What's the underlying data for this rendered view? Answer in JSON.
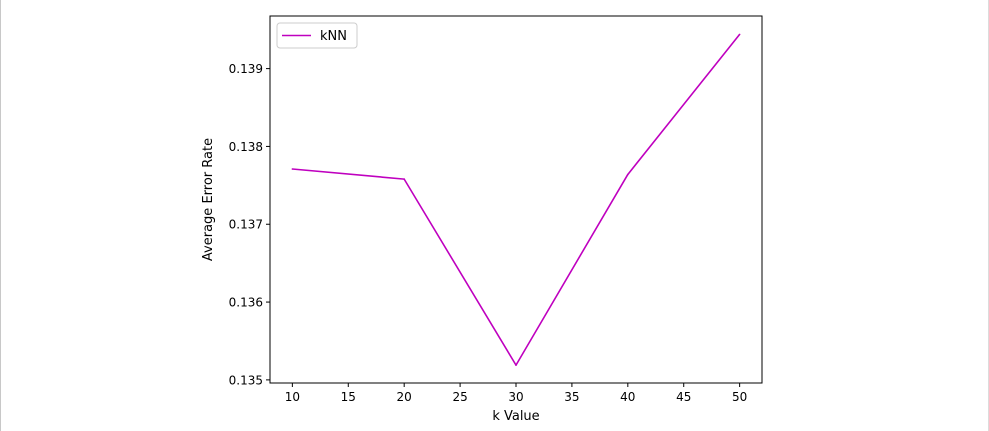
{
  "chart_data": {
    "type": "line",
    "title": "",
    "xlabel": "k Value",
    "ylabel": "Average Error Rate",
    "x_ticks": [
      10,
      15,
      20,
      25,
      30,
      35,
      40,
      45,
      50
    ],
    "y_ticks": [
      0.135,
      0.136,
      0.137,
      0.138,
      0.139
    ],
    "xlim": [
      8,
      52
    ],
    "ylim": [
      0.13496,
      0.139676
    ],
    "grid": false,
    "legend_position": "top-left",
    "series": [
      {
        "name": "kNN",
        "color": "#bf00bf",
        "x": [
          10,
          20,
          30,
          40,
          50
        ],
        "y": [
          0.13771,
          0.13758,
          0.13519,
          0.13764,
          0.13944
        ]
      }
    ]
  }
}
